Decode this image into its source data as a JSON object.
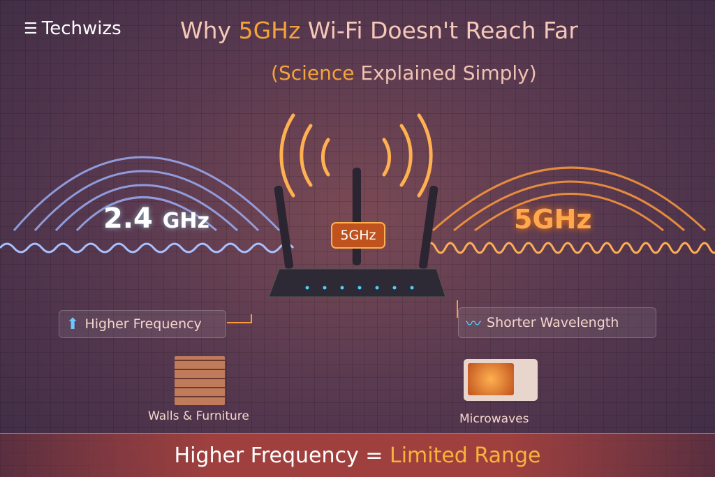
{
  "brand": {
    "name": "Techwizs"
  },
  "title": {
    "prefix": "Why ",
    "highlight": "5GHz",
    "suffix": " Wi-Fi Doesn't Reach Far"
  },
  "subtitle": {
    "open": "(",
    "highlight": "Science",
    "rest": " Explained Simply)"
  },
  "bands": {
    "left": "2.4",
    "left_unit": "GHz",
    "right": "5GHz",
    "router_badge": "5GHz"
  },
  "cards": {
    "higher_frequency": "Higher Frequency",
    "shorter_wavelength": "Shorter Wavelength"
  },
  "captions": {
    "walls": "Walls & Furniture",
    "microwaves": "Microwaves"
  },
  "conclusion": {
    "left": "Higher Frequency = ",
    "highlight": "Limited Range"
  },
  "colors": {
    "accent": "#f5a33a",
    "wave_24": "#8fb0ff",
    "wave_5": "#ff9a3c"
  }
}
